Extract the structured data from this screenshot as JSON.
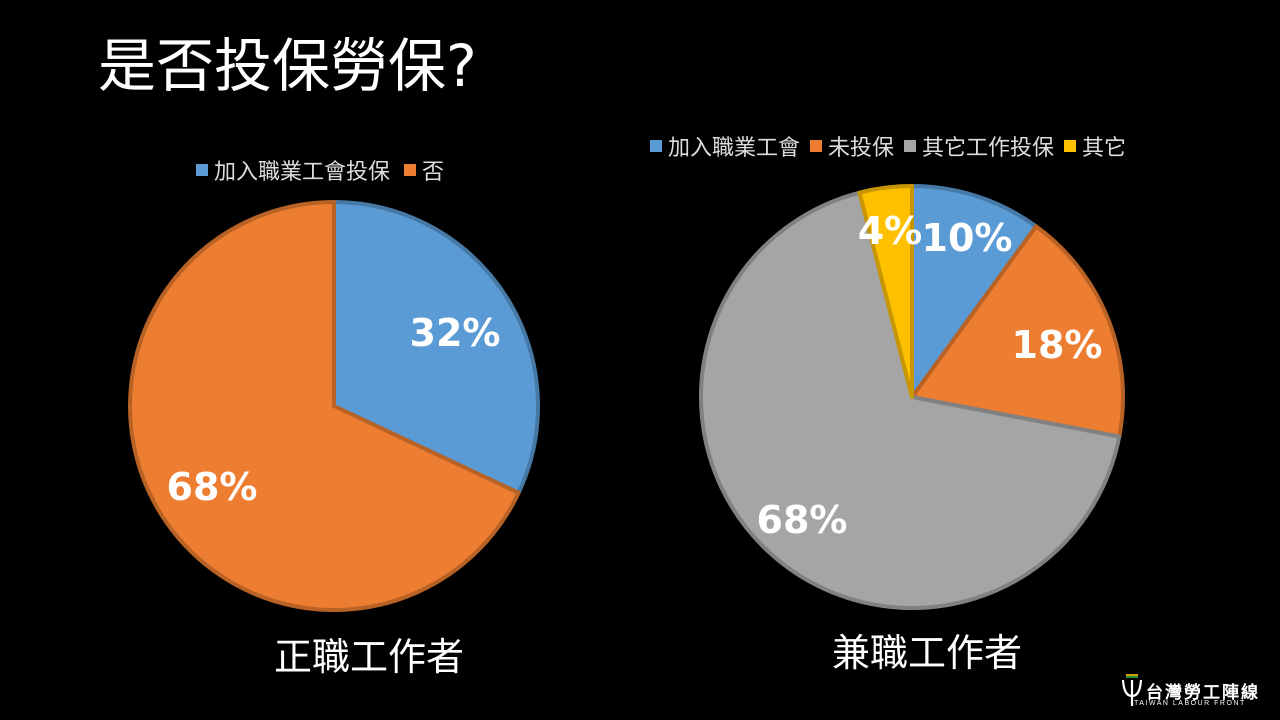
{
  "slide": {
    "title": "是否投保勞保?"
  },
  "chart_data": [
    {
      "type": "pie",
      "title": "",
      "caption": "正職工作者",
      "legend_position": "top",
      "categories": [
        "加入職業工會投保",
        "否"
      ],
      "values": [
        32,
        68
      ],
      "labels": [
        "32%",
        "68%"
      ],
      "colors": [
        "#5B9BD5",
        "#ED7D31"
      ]
    },
    {
      "type": "pie",
      "title": "",
      "caption": "兼職工作者",
      "legend_position": "top",
      "categories": [
        "加入職業工會",
        "未投保",
        "其它工作投保",
        "其它"
      ],
      "values": [
        10,
        18,
        68,
        4
      ],
      "labels": [
        "10%",
        "18%",
        "68%",
        "4%"
      ],
      "colors": [
        "#5B9BD5",
        "#ED7D31",
        "#A5A5A5",
        "#FFC000"
      ]
    }
  ],
  "logo": {
    "name": "台灣勞工陣線",
    "subtitle": "TAIWAN LABOUR FRONT"
  }
}
